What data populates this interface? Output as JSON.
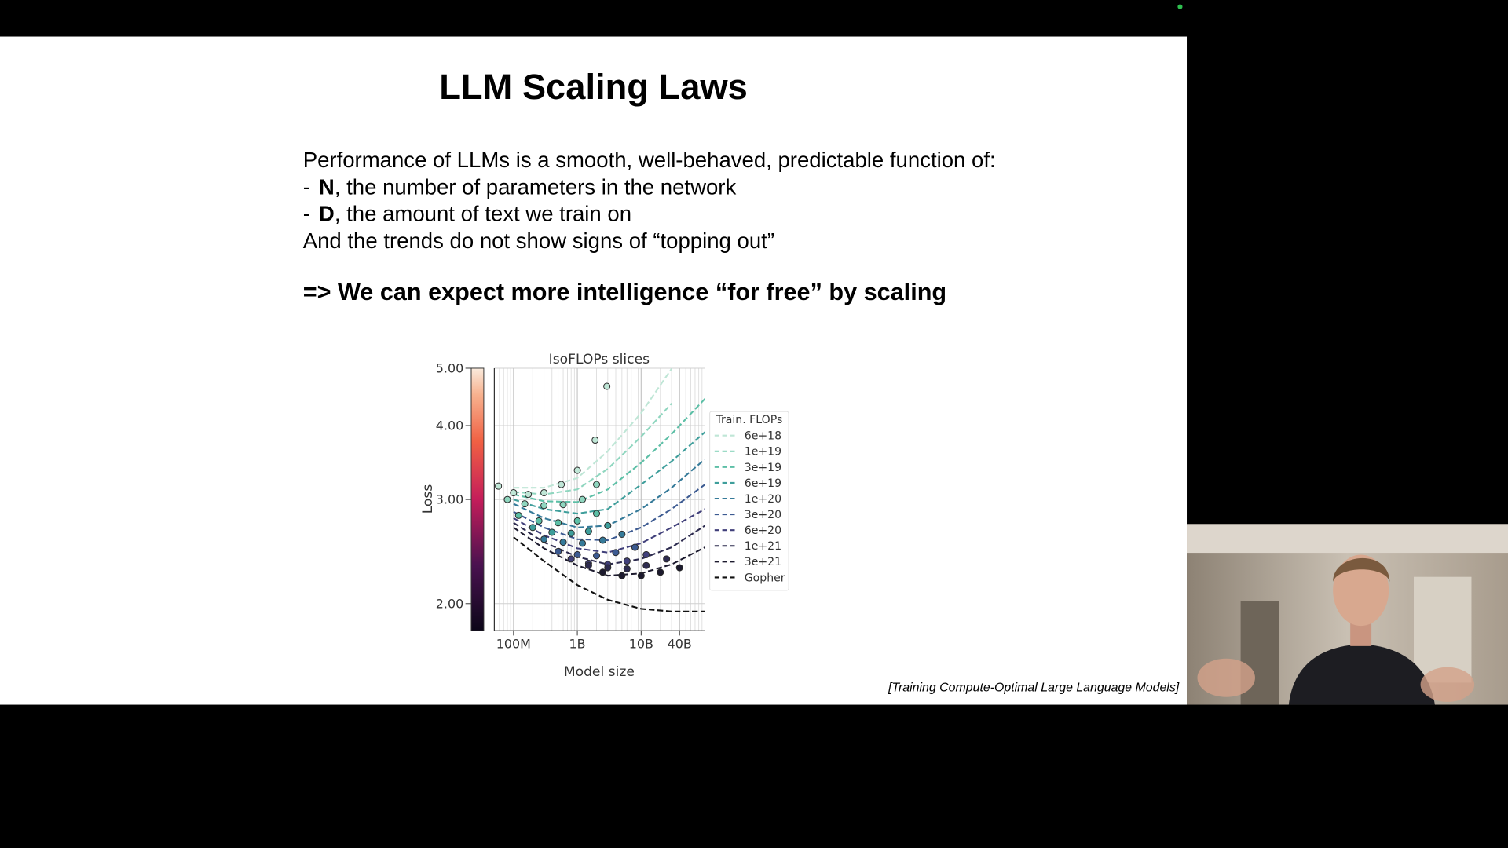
{
  "slide": {
    "title": "LLM Scaling Laws",
    "intro": "Performance of LLMs is a smooth, well-behaved, predictable function of:",
    "bullets": [
      {
        "marker": "-",
        "term": "N",
        "rest": ", the number of parameters in the network"
      },
      {
        "marker": "-",
        "term": "D",
        "rest": ", the amount of text we train on"
      }
    ],
    "closing": "And the trends do not show signs of “topping out”",
    "conclusion": "=> We can expect more intelligence “for free” by scaling",
    "citation": "[Training Compute-Optimal Large Language Models]"
  },
  "chart_data": {
    "type": "line",
    "title": "IsoFLOPs slices",
    "xlabel": "Model size",
    "ylabel": "Loss",
    "legend_title": "Train. FLOPs",
    "legend": "outside-right",
    "xscale": "log",
    "yscale": "log",
    "grid": true,
    "colorbar": true,
    "xlim": [
      50000000,
      100000000000
    ],
    "ylim": [
      1.8,
      5
    ],
    "xticks": [
      {
        "value": 100000000,
        "label": "100M"
      },
      {
        "value": 1000000000,
        "label": "1B"
      },
      {
        "value": 10000000000,
        "label": "10B"
      },
      {
        "value": 40000000000,
        "label": "40B"
      }
    ],
    "yticks": [
      {
        "value": 2,
        "label": "2.00"
      },
      {
        "value": 3,
        "label": "3.00"
      },
      {
        "value": 4,
        "label": "4.00"
      },
      {
        "value": 5,
        "label": "5.00"
      }
    ],
    "x": [
      100000000,
      300000000,
      1000000000,
      3000000000,
      10000000000,
      30000000000,
      100000000000
    ],
    "series": [
      {
        "name": "6e+18",
        "color": "#bfe6d6",
        "values": [
          3.14,
          3.14,
          3.26,
          3.62,
          4.2,
          4.99,
          null
        ],
        "points": {
          "x": [
            58000000,
            100000000,
            170000000,
            300000000,
            560000000,
            1000000000,
            1900000000,
            2900000000
          ],
          "y": [
            3.16,
            3.08,
            3.06,
            3.08,
            3.18,
            3.36,
            3.78,
            4.66
          ]
        }
      },
      {
        "name": "1e+19",
        "color": "#8fd6bf",
        "values": [
          3.09,
          3.06,
          3.12,
          3.38,
          3.83,
          4.36,
          null
        ],
        "points": {
          "x": [
            80000000,
            150000000,
            300000000,
            600000000,
            1200000000,
            2000000000
          ],
          "y": [
            3.0,
            2.95,
            2.93,
            2.94,
            3.0,
            3.18
          ]
        }
      },
      {
        "name": "3e+19",
        "color": "#5cbfa6",
        "values": [
          3.06,
          2.98,
          2.97,
          3.12,
          3.46,
          3.87,
          4.44
        ],
        "points": {
          "x": [
            120000000,
            250000000,
            500000000,
            1000000000,
            2000000000
          ],
          "y": [
            2.82,
            2.76,
            2.74,
            2.76,
            2.84
          ]
        }
      },
      {
        "name": "6e+19",
        "color": "#3e9e9b",
        "values": [
          3.0,
          2.89,
          2.84,
          2.89,
          3.18,
          3.48,
          3.9
        ],
        "points": {
          "x": [
            200000000,
            400000000,
            800000000,
            1500000000,
            3000000000
          ],
          "y": [
            2.69,
            2.64,
            2.63,
            2.65,
            2.71
          ]
        }
      },
      {
        "name": "1e+20",
        "color": "#357a99",
        "values": [
          2.95,
          2.79,
          2.69,
          2.71,
          2.89,
          3.14,
          3.51
        ],
        "points": {
          "x": [
            300000000,
            600000000,
            1200000000,
            2500000000,
            5000000000
          ],
          "y": [
            2.57,
            2.54,
            2.53,
            2.56,
            2.62
          ]
        }
      },
      {
        "name": "3e+20",
        "color": "#3c5a91",
        "values": [
          2.86,
          2.69,
          2.57,
          2.56,
          2.69,
          2.89,
          3.18
        ],
        "points": {
          "x": [
            500000000,
            1000000000,
            2000000000,
            4000000000,
            8000000000
          ],
          "y": [
            2.45,
            2.42,
            2.41,
            2.44,
            2.49
          ]
        }
      },
      {
        "name": "6e+20",
        "color": "#403f7a",
        "values": [
          2.79,
          2.61,
          2.48,
          2.44,
          2.53,
          2.69,
          2.89
        ],
        "points": {
          "x": [
            800000000,
            1500000000,
            3000000000,
            6000000000,
            12000000000
          ],
          "y": [
            2.38,
            2.34,
            2.33,
            2.36,
            2.42
          ]
        }
      },
      {
        "name": "1e+21",
        "color": "#2d2b4f",
        "values": [
          2.74,
          2.54,
          2.4,
          2.33,
          2.38,
          2.49,
          2.71
        ],
        "points": {
          "x": [
            1500000000,
            3000000000,
            6000000000,
            12000000000,
            25000000000
          ],
          "y": [
            2.32,
            2.3,
            2.29,
            2.32,
            2.38
          ]
        }
      },
      {
        "name": "3e+21",
        "color": "#1c1a2e",
        "values": [
          2.69,
          2.48,
          2.32,
          2.23,
          2.25,
          2.33,
          2.49
        ],
        "points": {
          "x": [
            2500000000,
            5000000000,
            10000000000,
            20000000000,
            40000000000
          ],
          "y": [
            2.26,
            2.23,
            2.23,
            2.26,
            2.3
          ]
        }
      },
      {
        "name": "Gopher",
        "color": "#111111",
        "values": [
          2.59,
          2.36,
          2.15,
          2.03,
          1.96,
          1.94,
          1.94
        ]
      }
    ]
  }
}
